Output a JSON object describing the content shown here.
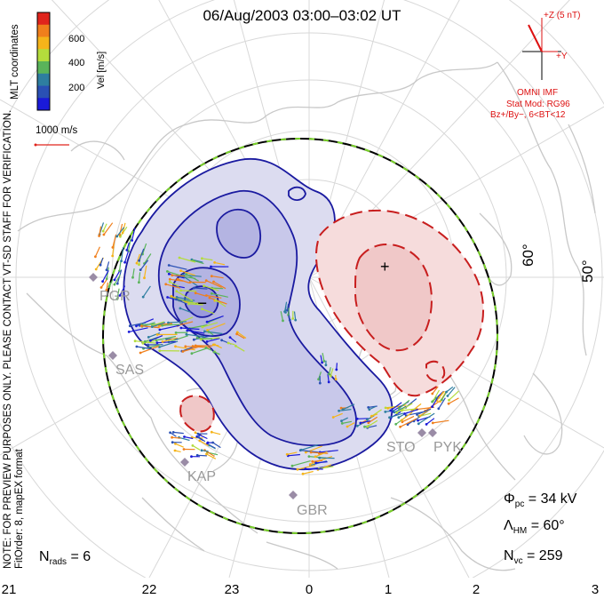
{
  "title": "06/Aug/2003 03:00–03:02 UT",
  "colorbar": {
    "title": "Vel [m/s]",
    "ticks": [
      "600",
      "400",
      "200"
    ],
    "colors": [
      "#e0241c",
      "#f07f1c",
      "#f5b41a",
      "#b4dc3c",
      "#5ab45a",
      "#2e7ea0",
      "#2a50b4",
      "#1a1ad8"
    ]
  },
  "coordinate_label": "MLT coordinates",
  "scale_vector_label": "1000 m/s",
  "notes": {
    "line1": "NOTE: FOR PREVIEW PURPOSES ONLY. PLEASE CONTACT VT-SD STAFF FOR VERIFICATION.",
    "line2": "FitOrder: 8,  mapEX format"
  },
  "imf": {
    "axis_z": "+Z (5 nT)",
    "axis_y": "+Y",
    "source": "OMNI IMF",
    "stat_mod": "Stat Mod: RG96",
    "conditions": "Bz+/By−, 6<BT<12"
  },
  "latitude_labels": [
    "60°",
    "50°"
  ],
  "mlt_ticks": [
    "21",
    "22",
    "23",
    "0",
    "1",
    "2",
    "3"
  ],
  "radars": [
    "PGR",
    "SAS",
    "KAP",
    "GBR",
    "STO",
    "PYK"
  ],
  "stats": {
    "phi_pc": "34 kV",
    "lambda_hm": "60°",
    "n_vc": "259",
    "n_rads": "6"
  },
  "colors": {
    "negative_cell": "#1a1aa0",
    "positive_cell": "#c81e1e",
    "hm_boundary_dash": "#7ad22a",
    "land": "#c8c8c8",
    "imf_text": "#d11"
  }
}
